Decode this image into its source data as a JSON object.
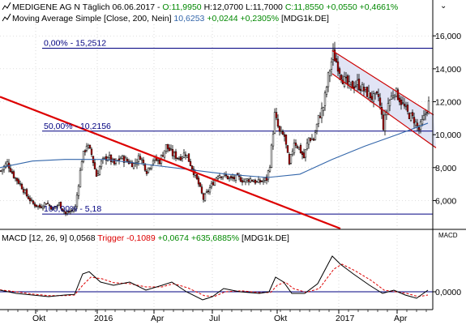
{
  "header": {
    "icon": "line-chart-icon",
    "title_prefix": "MEDIGENE AG N Täglich  06.06.2017 - ",
    "ohlc_open": "O:11,9950",
    "ohlc_high": "H:12,0700",
    "ohlc_low": "L:11,7000",
    "ohlc_close": "C:11,8550",
    "ohlc_change": "+0,0550",
    "ohlc_change_pct": "+0,4661%",
    "ma_prefix": "Moving Average Simple [Close, 200, Nein]",
    "ma_value": "10,6253",
    "ma_change": "+0,0244",
    "ma_change_pct": "+0,2305%",
    "ma_suffix": "[MDG1k.DE]",
    "corner_glyph": "⌄"
  },
  "macd_header": {
    "prefix": "MACD [12, 26, 9]",
    "value": "0,0568",
    "trigger_label": "Trigger",
    "trigger_value": "-0,1089",
    "change": "+0,0674",
    "change_pct": "+635,6885%",
    "suffix": "[MDG1k.DE]",
    "axis_label": "MACD"
  },
  "colors": {
    "price_candles": "#000000",
    "bull_body": "#ffffff",
    "bear_body": "#cc0000",
    "moving_average": "#3366aa",
    "trendline": "#dd0000",
    "channel": "#cc0000",
    "channel_fill": "#d9ddf2",
    "fib_line": "#000080",
    "fib_text": "#000080",
    "macd_line": "#000000",
    "macd_trigger": "#dd0000",
    "change_positive": "#008800",
    "ma_value": "#3366aa",
    "grid": "#c0c0c0"
  },
  "chart_data": [
    {
      "type": "candlestick",
      "title": "MEDIGENE AG N Täglich",
      "x_ticks": [
        "Okt",
        "2016",
        "Apr",
        "Jul",
        "Okt",
        "2017",
        "Apr"
      ],
      "y_ticks": [
        "6,000",
        "8,000",
        "10,000",
        "12,000",
        "14,000",
        "16,000"
      ],
      "ylim": [
        4.3,
        16.7
      ],
      "fib_levels": [
        {
          "label": "0,00% - 15,2512",
          "value": 15.2512
        },
        {
          "label": "50,00% - 10,2156",
          "value": 10.2156
        },
        {
          "label": "100,00% - 5,18",
          "value": 5.18
        }
      ],
      "close_series": [
        {
          "x": 0,
          "y": 7.8
        },
        {
          "x": 8,
          "y": 8.3
        },
        {
          "x": 16,
          "y": 7.5
        },
        {
          "x": 24,
          "y": 7.0
        },
        {
          "x": 32,
          "y": 6.3
        },
        {
          "x": 40,
          "y": 5.8
        },
        {
          "x": 48,
          "y": 5.6
        },
        {
          "x": 56,
          "y": 5.9
        },
        {
          "x": 64,
          "y": 5.5
        },
        {
          "x": 72,
          "y": 5.8
        },
        {
          "x": 80,
          "y": 5.2
        },
        {
          "x": 88,
          "y": 5.4
        },
        {
          "x": 92,
          "y": 5.6
        },
        {
          "x": 100,
          "y": 8.5
        },
        {
          "x": 106,
          "y": 9.4
        },
        {
          "x": 112,
          "y": 8.8
        },
        {
          "x": 118,
          "y": 7.5
        },
        {
          "x": 124,
          "y": 8.3
        },
        {
          "x": 132,
          "y": 8.7
        },
        {
          "x": 140,
          "y": 8.2
        },
        {
          "x": 148,
          "y": 8.6
        },
        {
          "x": 156,
          "y": 8.4
        },
        {
          "x": 164,
          "y": 8.2
        },
        {
          "x": 172,
          "y": 8.7
        },
        {
          "x": 180,
          "y": 7.8
        },
        {
          "x": 188,
          "y": 8.5
        },
        {
          "x": 196,
          "y": 8.4
        },
        {
          "x": 204,
          "y": 9.3
        },
        {
          "x": 212,
          "y": 8.8
        },
        {
          "x": 220,
          "y": 8.6
        },
        {
          "x": 228,
          "y": 8.9
        },
        {
          "x": 236,
          "y": 8.0
        },
        {
          "x": 244,
          "y": 7.0
        },
        {
          "x": 250,
          "y": 6.1
        },
        {
          "x": 256,
          "y": 6.6
        },
        {
          "x": 262,
          "y": 7.1
        },
        {
          "x": 268,
          "y": 7.6
        },
        {
          "x": 276,
          "y": 7.5
        },
        {
          "x": 284,
          "y": 7.3
        },
        {
          "x": 292,
          "y": 7.4
        },
        {
          "x": 300,
          "y": 7.2
        },
        {
          "x": 308,
          "y": 7.3
        },
        {
          "x": 316,
          "y": 7.1
        },
        {
          "x": 324,
          "y": 7.2
        },
        {
          "x": 328,
          "y": 7.3
        },
        {
          "x": 332,
          "y": 8.2
        },
        {
          "x": 338,
          "y": 11.2
        },
        {
          "x": 344,
          "y": 10.1
        },
        {
          "x": 350,
          "y": 9.9
        },
        {
          "x": 356,
          "y": 8.1
        },
        {
          "x": 362,
          "y": 9.6
        },
        {
          "x": 368,
          "y": 9.2
        },
        {
          "x": 374,
          "y": 8.6
        },
        {
          "x": 380,
          "y": 9.8
        },
        {
          "x": 386,
          "y": 9.7
        },
        {
          "x": 392,
          "y": 11.0
        },
        {
          "x": 398,
          "y": 11.7
        },
        {
          "x": 404,
          "y": 13.5
        },
        {
          "x": 410,
          "y": 14.9
        },
        {
          "x": 416,
          "y": 14.2
        },
        {
          "x": 422,
          "y": 13.4
        },
        {
          "x": 430,
          "y": 12.9
        },
        {
          "x": 440,
          "y": 13.1
        },
        {
          "x": 450,
          "y": 12.6
        },
        {
          "x": 460,
          "y": 12.2
        },
        {
          "x": 466,
          "y": 12.3
        },
        {
          "x": 472,
          "y": 10.5
        },
        {
          "x": 478,
          "y": 11.9
        },
        {
          "x": 486,
          "y": 12.7
        },
        {
          "x": 494,
          "y": 12.0
        },
        {
          "x": 502,
          "y": 11.3
        },
        {
          "x": 510,
          "y": 10.9
        },
        {
          "x": 516,
          "y": 10.3
        },
        {
          "x": 522,
          "y": 11.0
        },
        {
          "x": 528,
          "y": 11.9
        }
      ],
      "moving_average": [
        {
          "x": 0,
          "y": 8.0
        },
        {
          "x": 40,
          "y": 8.4
        },
        {
          "x": 80,
          "y": 8.5
        },
        {
          "x": 130,
          "y": 8.5
        },
        {
          "x": 180,
          "y": 8.2
        },
        {
          "x": 230,
          "y": 7.9
        },
        {
          "x": 280,
          "y": 7.6
        },
        {
          "x": 330,
          "y": 7.4
        },
        {
          "x": 370,
          "y": 7.6
        },
        {
          "x": 410,
          "y": 8.5
        },
        {
          "x": 450,
          "y": 9.3
        },
        {
          "x": 490,
          "y": 10.0
        },
        {
          "x": 528,
          "y": 10.7
        }
      ],
      "trendline": [
        {
          "x": 0,
          "y": 12.3
        },
        {
          "x": 420,
          "y": 4.3
        }
      ],
      "channel": {
        "upper": [
          {
            "x": 410,
            "y": 15.1
          },
          {
            "x": 535,
            "y": 11.2
          }
        ],
        "lower": [
          {
            "x": 410,
            "y": 13.7
          },
          {
            "x": 538,
            "y": 9.2
          }
        ]
      }
    },
    {
      "type": "line",
      "title": "MACD [12, 26, 9]",
      "y_ticks": [
        "0,0000"
      ],
      "zero_line": 0,
      "ylim": [
        -0.5,
        1.5
      ],
      "series": [
        {
          "name": "MACD",
          "values": [
            {
              "x": 0,
              "y": 0.05
            },
            {
              "x": 20,
              "y": -0.05
            },
            {
              "x": 40,
              "y": -0.1
            },
            {
              "x": 60,
              "y": -0.15
            },
            {
              "x": 80,
              "y": -0.1
            },
            {
              "x": 92,
              "y": -0.08
            },
            {
              "x": 102,
              "y": 0.55
            },
            {
              "x": 110,
              "y": 0.62
            },
            {
              "x": 124,
              "y": 0.3
            },
            {
              "x": 140,
              "y": 0.2
            },
            {
              "x": 160,
              "y": 0.3
            },
            {
              "x": 180,
              "y": 0.05
            },
            {
              "x": 200,
              "y": 0.2
            },
            {
              "x": 212,
              "y": 0.3
            },
            {
              "x": 230,
              "y": 0.0
            },
            {
              "x": 250,
              "y": -0.25
            },
            {
              "x": 262,
              "y": -0.15
            },
            {
              "x": 276,
              "y": 0.1
            },
            {
              "x": 296,
              "y": 0.0
            },
            {
              "x": 320,
              "y": -0.05
            },
            {
              "x": 332,
              "y": 0.0
            },
            {
              "x": 340,
              "y": 0.45
            },
            {
              "x": 350,
              "y": 0.3
            },
            {
              "x": 360,
              "y": -0.05
            },
            {
              "x": 376,
              "y": -0.05
            },
            {
              "x": 392,
              "y": 0.25
            },
            {
              "x": 410,
              "y": 1.1
            },
            {
              "x": 420,
              "y": 0.85
            },
            {
              "x": 436,
              "y": 0.55
            },
            {
              "x": 456,
              "y": 0.2
            },
            {
              "x": 472,
              "y": -0.05
            },
            {
              "x": 486,
              "y": 0.05
            },
            {
              "x": 500,
              "y": -0.1
            },
            {
              "x": 514,
              "y": -0.2
            },
            {
              "x": 528,
              "y": 0.05
            }
          ]
        },
        {
          "name": "Trigger",
          "values": [
            {
              "x": 0,
              "y": 0.06
            },
            {
              "x": 20,
              "y": 0.0
            },
            {
              "x": 40,
              "y": -0.07
            },
            {
              "x": 60,
              "y": -0.12
            },
            {
              "x": 80,
              "y": -0.12
            },
            {
              "x": 92,
              "y": -0.1
            },
            {
              "x": 102,
              "y": 0.2
            },
            {
              "x": 112,
              "y": 0.45
            },
            {
              "x": 126,
              "y": 0.4
            },
            {
              "x": 140,
              "y": 0.28
            },
            {
              "x": 160,
              "y": 0.25
            },
            {
              "x": 180,
              "y": 0.15
            },
            {
              "x": 200,
              "y": 0.15
            },
            {
              "x": 214,
              "y": 0.25
            },
            {
              "x": 232,
              "y": 0.12
            },
            {
              "x": 252,
              "y": -0.12
            },
            {
              "x": 264,
              "y": -0.15
            },
            {
              "x": 278,
              "y": 0.0
            },
            {
              "x": 298,
              "y": 0.03
            },
            {
              "x": 322,
              "y": -0.03
            },
            {
              "x": 334,
              "y": -0.02
            },
            {
              "x": 342,
              "y": 0.2
            },
            {
              "x": 352,
              "y": 0.3
            },
            {
              "x": 362,
              "y": 0.1
            },
            {
              "x": 378,
              "y": -0.02
            },
            {
              "x": 394,
              "y": 0.1
            },
            {
              "x": 412,
              "y": 0.7
            },
            {
              "x": 422,
              "y": 0.85
            },
            {
              "x": 438,
              "y": 0.65
            },
            {
              "x": 458,
              "y": 0.35
            },
            {
              "x": 474,
              "y": 0.05
            },
            {
              "x": 488,
              "y": 0.0
            },
            {
              "x": 502,
              "y": -0.05
            },
            {
              "x": 516,
              "y": -0.15
            },
            {
              "x": 528,
              "y": -0.1
            }
          ]
        }
      ]
    }
  ]
}
